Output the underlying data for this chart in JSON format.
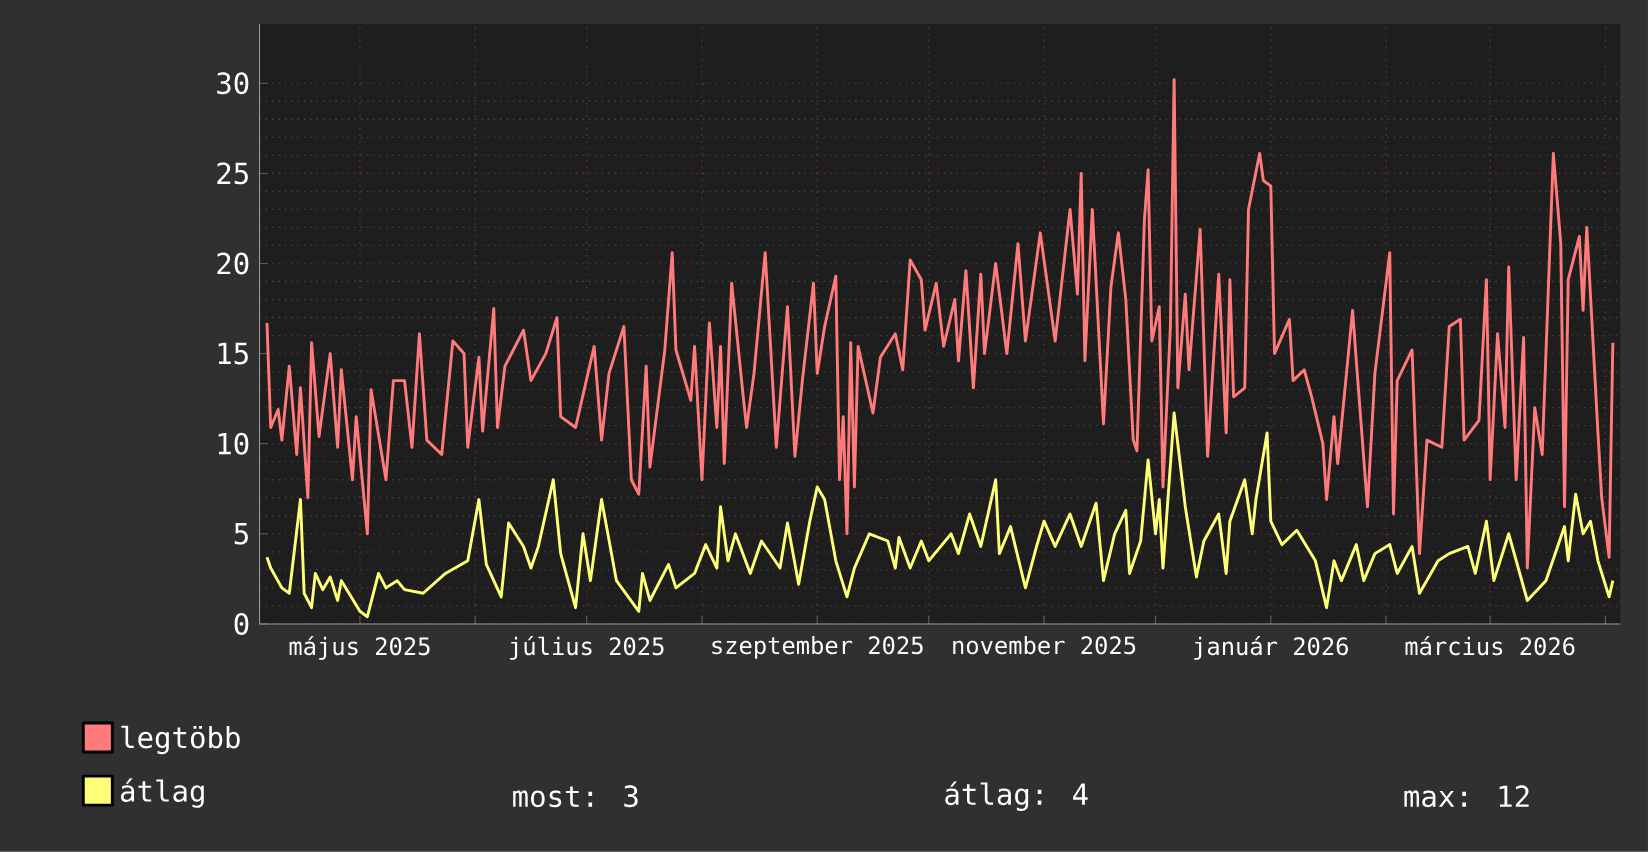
{
  "chart_data": {
    "type": "line",
    "xlim": [
      "2025-04-04",
      "2026-04-05"
    ],
    "xticks": [
      {
        "value": "2025-05-01",
        "label": "május 2025"
      },
      {
        "value": "2025-06-01",
        "label": null
      },
      {
        "value": "2025-07-01",
        "label": "július 2025"
      },
      {
        "value": "2025-08-01",
        "label": null
      },
      {
        "value": "2025-09-01",
        "label": "szeptember 2025"
      },
      {
        "value": "2025-10-01",
        "label": null
      },
      {
        "value": "2025-11-01",
        "label": "november 2025"
      },
      {
        "value": "2025-12-01",
        "label": null
      },
      {
        "value": "2026-01-01",
        "label": "január 2026"
      },
      {
        "value": "2026-02-01",
        "label": null
      },
      {
        "value": "2026-03-01",
        "label": "március 2026"
      },
      {
        "value": "2026-04-01",
        "label": null
      }
    ],
    "ylim": [
      0,
      33.3
    ],
    "yticks": [
      0,
      5,
      10,
      15,
      20,
      25,
      30
    ],
    "grid": true,
    "legend": "bottom",
    "marker": "none",
    "line_style": "solid",
    "annotations": [
      "most: 3",
      "átlag: 4",
      "max: 12"
    ],
    "series": [
      {
        "name": "legtöbb",
        "color": "#ff7b7b",
        "x": [
          "2025-04-06",
          "2025-04-07",
          "2025-04-09",
          "2025-04-10",
          "2025-04-12",
          "2025-04-14",
          "2025-04-15",
          "2025-04-17",
          "2025-04-18",
          "2025-04-20",
          "2025-04-23",
          "2025-04-25",
          "2025-04-26",
          "2025-04-29",
          "2025-04-30",
          "2025-05-03",
          "2025-05-04",
          "2025-05-08",
          "2025-05-10",
          "2025-05-13",
          "2025-05-15",
          "2025-05-17",
          "2025-05-19",
          "2025-05-23",
          "2025-05-26",
          "2025-05-29",
          "2025-05-30",
          "2025-06-02",
          "2025-06-03",
          "2025-06-06",
          "2025-06-07",
          "2025-06-09",
          "2025-06-14",
          "2025-06-16",
          "2025-06-20",
          "2025-06-23",
          "2025-06-24",
          "2025-06-28",
          "2025-07-03",
          "2025-07-05",
          "2025-07-07",
          "2025-07-11",
          "2025-07-13",
          "2025-07-15",
          "2025-07-17",
          "2025-07-18",
          "2025-07-22",
          "2025-07-24",
          "2025-07-25",
          "2025-07-29",
          "2025-07-30",
          "2025-08-01",
          "2025-08-03",
          "2025-08-05",
          "2025-08-06",
          "2025-08-07",
          "2025-08-09",
          "2025-08-12",
          "2025-08-13",
          "2025-08-15",
          "2025-08-18",
          "2025-08-21",
          "2025-08-24",
          "2025-08-26",
          "2025-08-28",
          "2025-08-31",
          "2025-09-01",
          "2025-09-03",
          "2025-09-06",
          "2025-09-07",
          "2025-09-08",
          "2025-09-09",
          "2025-09-10",
          "2025-09-11",
          "2025-09-12",
          "2025-09-16",
          "2025-09-18",
          "2025-09-22",
          "2025-09-24",
          "2025-09-26",
          "2025-09-29",
          "2025-09-30",
          "2025-10-03",
          "2025-10-05",
          "2025-10-08",
          "2025-10-09",
          "2025-10-11",
          "2025-10-13",
          "2025-10-15",
          "2025-10-16",
          "2025-10-19",
          "2025-10-22",
          "2025-10-25",
          "2025-10-27",
          "2025-10-31",
          "2025-11-04",
          "2025-11-08",
          "2025-11-10",
          "2025-11-11",
          "2025-11-12",
          "2025-11-14",
          "2025-11-17",
          "2025-11-19",
          "2025-11-21",
          "2025-11-23",
          "2025-11-25",
          "2025-11-26",
          "2025-11-28",
          "2025-11-29",
          "2025-11-30",
          "2025-12-02",
          "2025-12-03",
          "2025-12-05",
          "2025-12-06",
          "2025-12-07",
          "2025-12-09",
          "2025-12-10",
          "2025-12-13",
          "2025-12-15",
          "2025-12-18",
          "2025-12-20",
          "2025-12-21",
          "2025-12-22",
          "2025-12-25",
          "2025-12-26",
          "2025-12-29",
          "2025-12-30",
          "2026-01-01",
          "2026-01-02",
          "2026-01-06",
          "2026-01-07",
          "2026-01-10",
          "2026-01-12",
          "2026-01-15",
          "2026-01-16",
          "2026-01-18",
          "2026-01-19",
          "2026-01-23",
          "2026-01-24",
          "2026-01-27",
          "2026-01-29",
          "2026-02-02",
          "2026-02-03",
          "2026-02-04",
          "2026-02-08",
          "2026-02-10",
          "2026-02-12",
          "2026-02-16",
          "2026-02-18",
          "2026-02-21",
          "2026-02-22",
          "2026-02-26",
          "2026-02-28",
          "2026-03-01",
          "2026-03-03",
          "2026-03-05",
          "2026-03-06",
          "2026-03-08",
          "2026-03-10",
          "2026-03-11",
          "2026-03-13",
          "2026-03-15",
          "2026-03-18",
          "2026-03-20",
          "2026-03-21",
          "2026-03-22",
          "2026-03-25",
          "2026-03-26",
          "2026-03-27",
          "2026-03-30",
          "2026-03-31",
          "2026-04-02",
          "2026-04-03"
        ],
        "values": [
          16.7,
          10.9,
          11.9,
          10.2,
          14.3,
          9.4,
          13.1,
          7.0,
          15.6,
          10.4,
          15.0,
          9.8,
          14.1,
          8.0,
          11.5,
          5.0,
          13.0,
          8.0,
          13.5,
          13.5,
          9.8,
          16.1,
          10.2,
          9.4,
          15.7,
          15.0,
          9.8,
          14.8,
          10.7,
          17.5,
          10.9,
          14.3,
          16.3,
          13.5,
          15.0,
          17.0,
          11.5,
          10.9,
          15.4,
          10.2,
          13.9,
          16.5,
          8.0,
          7.2,
          14.3,
          8.7,
          15.2,
          20.6,
          15.2,
          12.4,
          15.4,
          8.0,
          16.7,
          10.9,
          15.4,
          8.9,
          18.9,
          12.8,
          10.9,
          13.9,
          20.6,
          9.8,
          17.6,
          9.3,
          13.5,
          18.9,
          13.9,
          16.5,
          19.3,
          8.0,
          11.5,
          5.0,
          15.6,
          7.6,
          15.4,
          11.7,
          14.8,
          16.1,
          14.1,
          20.2,
          19.1,
          16.3,
          18.9,
          15.4,
          18.0,
          14.6,
          19.6,
          13.1,
          19.4,
          15.0,
          20.0,
          15.0,
          21.1,
          15.7,
          21.7,
          15.7,
          23.0,
          18.3,
          25.0,
          14.6,
          23.0,
          11.1,
          18.7,
          21.7,
          18.0,
          10.2,
          9.6,
          22.4,
          25.2,
          15.7,
          17.6,
          7.6,
          16.5,
          30.2,
          13.1,
          18.3,
          14.1,
          21.9,
          9.3,
          19.4,
          10.6,
          19.1,
          12.6,
          13.1,
          23.0,
          26.1,
          24.6,
          24.3,
          15.0,
          16.9,
          13.5,
          14.1,
          12.6,
          10.0,
          6.9,
          11.5,
          8.9,
          17.4,
          14.6,
          6.5,
          13.9,
          20.6,
          6.1,
          13.5,
          15.2,
          3.9,
          10.2,
          9.8,
          16.5,
          16.9,
          10.2,
          11.3,
          19.1,
          8.0,
          16.1,
          10.9,
          19.8,
          8.0,
          15.9,
          3.1,
          12.0,
          9.4,
          26.1,
          21.1,
          6.5,
          19.1,
          21.5,
          17.4,
          22.0,
          10.6,
          7.0,
          3.7,
          15.6
        ]
      },
      {
        "name": "átlag",
        "color": "#ffff77",
        "x": [
          "2025-04-06",
          "2025-04-07",
          "2025-04-10",
          "2025-04-12",
          "2025-04-15",
          "2025-04-16",
          "2025-04-18",
          "2025-04-19",
          "2025-04-21",
          "2025-04-23",
          "2025-04-25",
          "2025-04-26",
          "2025-05-01",
          "2025-05-03",
          "2025-05-06",
          "2025-05-08",
          "2025-05-11",
          "2025-05-13",
          "2025-05-18",
          "2025-05-24",
          "2025-05-30",
          "2025-06-02",
          "2025-06-04",
          "2025-06-08",
          "2025-06-10",
          "2025-06-14",
          "2025-06-16",
          "2025-06-18",
          "2025-06-22",
          "2025-06-24",
          "2025-06-28",
          "2025-06-30",
          "2025-07-02",
          "2025-07-05",
          "2025-07-09",
          "2025-07-15",
          "2025-07-16",
          "2025-07-18",
          "2025-07-23",
          "2025-07-25",
          "2025-07-30",
          "2025-08-02",
          "2025-08-05",
          "2025-08-06",
          "2025-08-08",
          "2025-08-10",
          "2025-08-14",
          "2025-08-17",
          "2025-08-22",
          "2025-08-24",
          "2025-08-27",
          "2025-08-30",
          "2025-09-01",
          "2025-09-03",
          "2025-09-06",
          "2025-09-09",
          "2025-09-11",
          "2025-09-15",
          "2025-09-20",
          "2025-09-22",
          "2025-09-23",
          "2025-09-26",
          "2025-09-29",
          "2025-10-01",
          "2025-10-07",
          "2025-10-09",
          "2025-10-12",
          "2025-10-15",
          "2025-10-19",
          "2025-10-20",
          "2025-10-23",
          "2025-10-27",
          "2025-10-30",
          "2025-11-01",
          "2025-11-04",
          "2025-11-08",
          "2025-11-11",
          "2025-11-15",
          "2025-11-17",
          "2025-11-20",
          "2025-11-23",
          "2025-11-24",
          "2025-11-27",
          "2025-11-29",
          "2025-12-01",
          "2025-12-02",
          "2025-12-03",
          "2025-12-06",
          "2025-12-09",
          "2025-12-12",
          "2025-12-14",
          "2025-12-18",
          "2025-12-20",
          "2025-12-21",
          "2025-12-25",
          "2025-12-27",
          "2025-12-28",
          "2025-12-31",
          "2026-01-01",
          "2026-01-04",
          "2026-01-08",
          "2026-01-13",
          "2026-01-16",
          "2026-01-18",
          "2026-01-20",
          "2026-01-24",
          "2026-01-26",
          "2026-01-29",
          "2026-02-02",
          "2026-02-04",
          "2026-02-08",
          "2026-02-10",
          "2026-02-15",
          "2026-02-18",
          "2026-02-23",
          "2026-02-25",
          "2026-02-28",
          "2026-03-02",
          "2026-03-06",
          "2026-03-11",
          "2026-03-16",
          "2026-03-21",
          "2026-03-22",
          "2026-03-24",
          "2026-03-26",
          "2026-03-28",
          "2026-03-30",
          "2026-04-02",
          "2026-04-03"
        ],
        "values": [
          3.7,
          3.1,
          2.0,
          1.7,
          6.9,
          1.7,
          0.9,
          2.8,
          1.9,
          2.6,
          1.3,
          2.4,
          0.7,
          0.4,
          2.8,
          2.0,
          2.4,
          1.9,
          1.7,
          2.8,
          3.5,
          6.9,
          3.3,
          1.5,
          5.6,
          4.3,
          3.1,
          4.3,
          8.0,
          3.9,
          0.9,
          5.0,
          2.4,
          6.9,
          2.4,
          0.7,
          2.8,
          1.3,
          3.3,
          2.0,
          2.8,
          4.4,
          3.1,
          6.5,
          3.5,
          5.0,
          2.8,
          4.6,
          3.1,
          5.6,
          2.2,
          5.7,
          7.6,
          6.9,
          3.5,
          1.5,
          3.1,
          5.0,
          4.6,
          3.1,
          4.8,
          3.1,
          4.6,
          3.5,
          5.0,
          3.9,
          6.1,
          4.3,
          8.0,
          3.9,
          5.4,
          2.0,
          4.3,
          5.7,
          4.3,
          6.1,
          4.3,
          6.7,
          2.4,
          5.0,
          6.3,
          2.8,
          4.6,
          9.1,
          5.0,
          6.9,
          3.1,
          11.7,
          6.5,
          2.6,
          4.6,
          6.1,
          2.8,
          5.7,
          8.0,
          5.0,
          6.9,
          10.6,
          5.7,
          4.4,
          5.2,
          3.5,
          0.9,
          3.5,
          2.4,
          4.4,
          2.4,
          3.9,
          4.4,
          2.8,
          4.3,
          1.7,
          3.5,
          3.9,
          4.3,
          2.8,
          5.7,
          2.4,
          5.0,
          1.3,
          2.4,
          5.4,
          3.5,
          7.2,
          5.0,
          5.7,
          3.5,
          1.5,
          2.4
        ]
      }
    ]
  }
}
